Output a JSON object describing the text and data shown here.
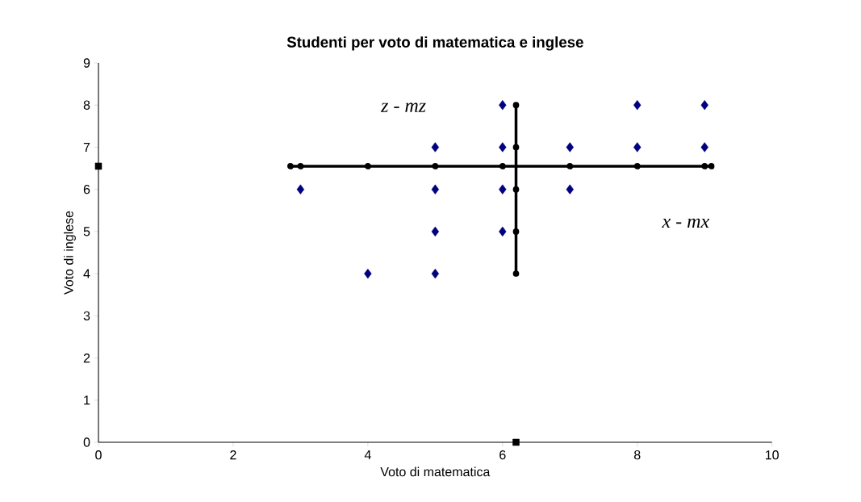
{
  "chart_data": {
    "type": "scatter",
    "title": "Studenti per voto di matematica e inglese",
    "xlabel": "Voto di matematica",
    "ylabel": "Voto di inglese",
    "xlim": [
      0,
      10
    ],
    "xticks": [
      0,
      2,
      4,
      6,
      8,
      10
    ],
    "ylim": [
      0,
      9
    ],
    "yticks": [
      0,
      1,
      2,
      3,
      4,
      5,
      6,
      7,
      8,
      9
    ],
    "grid": false,
    "annotations": [
      "z - mz",
      "x - mx"
    ],
    "series": [
      {
        "marker": "diamond",
        "color": "#000080",
        "x": [
          3,
          4,
          5,
          5,
          5,
          5,
          6,
          6,
          6,
          6,
          7,
          7,
          8,
          8,
          9,
          9
        ],
        "values": [
          6,
          4,
          7,
          6,
          5,
          4,
          8,
          7,
          6,
          5,
          7,
          6,
          8,
          7,
          8,
          7
        ]
      },
      {
        "type": "line",
        "marker": "circle",
        "color": "#000000",
        "x": [
          2.85,
          3,
          4,
          5,
          6,
          7,
          8,
          9,
          9.1
        ],
        "values": [
          6.55,
          6.55,
          6.55,
          6.55,
          6.55,
          6.55,
          6.55,
          6.55,
          6.55
        ]
      },
      {
        "type": "line",
        "marker": "circle",
        "color": "#000000",
        "x": [
          6.2,
          6.2,
          6.2,
          6.2,
          6.2
        ],
        "values": [
          4,
          5,
          6,
          7,
          8
        ]
      },
      {
        "marker": "square",
        "color": "#000000",
        "x": [
          0,
          6.2
        ],
        "values": [
          6.55,
          0
        ]
      }
    ]
  }
}
